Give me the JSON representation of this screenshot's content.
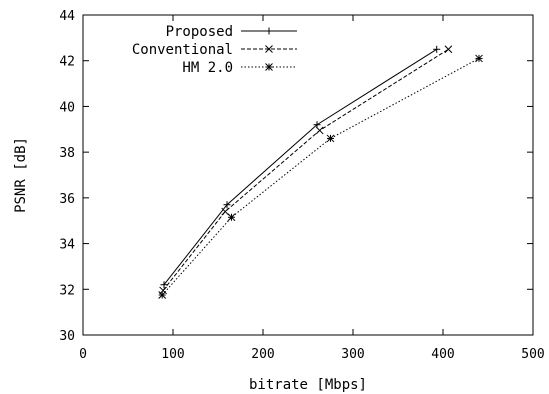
{
  "chart_data": {
    "type": "line",
    "xlabel": "bitrate [Mbps]",
    "ylabel": "PSNR [dB]",
    "xlim": [
      0,
      500
    ],
    "ylim": [
      30,
      44
    ],
    "xticks": [
      "0",
      "100",
      "200",
      "300",
      "400",
      "500"
    ],
    "yticks": [
      "30",
      "32",
      "34",
      "36",
      "38",
      "40",
      "42",
      "44"
    ],
    "grid": false,
    "legend": "top-left",
    "series": [
      {
        "name": "Proposed",
        "marker": "plus",
        "dash": "solid",
        "x": [
          90,
          160,
          260,
          393
        ],
        "y": [
          32.2,
          35.7,
          39.2,
          42.5
        ]
      },
      {
        "name": "Conventional",
        "marker": "cross",
        "dash": "dashed",
        "x": [
          89,
          158,
          263,
          406
        ],
        "y": [
          31.95,
          35.4,
          38.95,
          42.5
        ]
      },
      {
        "name": "HM 2.0",
        "marker": "star",
        "dash": "dotted",
        "x": [
          88,
          165,
          275,
          440
        ],
        "y": [
          31.75,
          35.15,
          38.6,
          42.1
        ]
      }
    ]
  }
}
